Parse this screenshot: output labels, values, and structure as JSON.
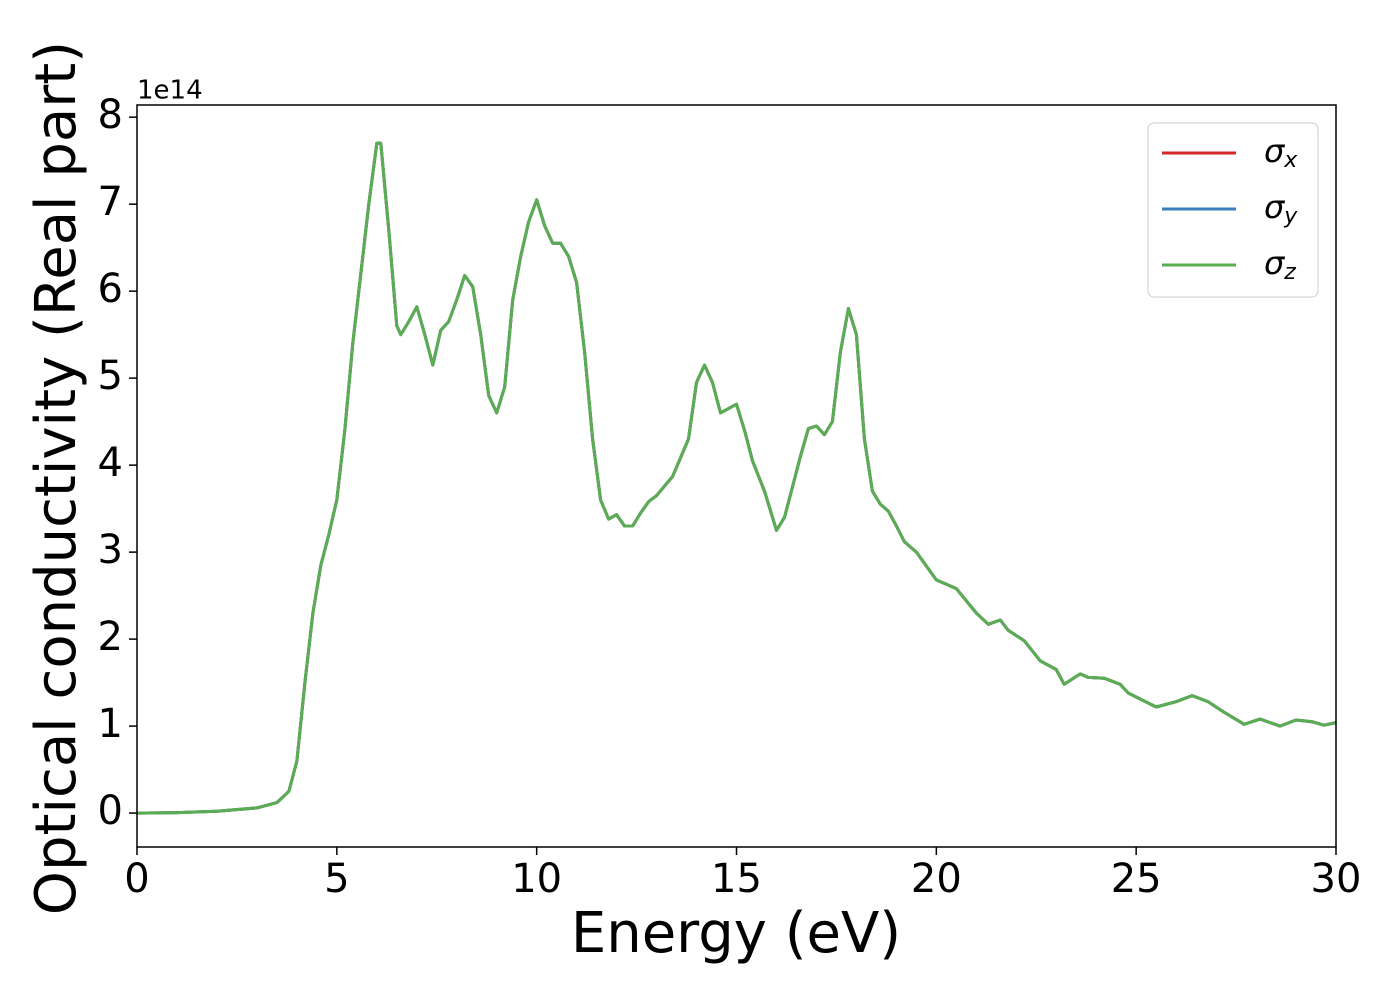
{
  "chart_data": {
    "type": "line",
    "x_label": "Energy (eV)",
    "y_label": "Optical conductivity (Real part)",
    "y_offset_label": "1e14",
    "x": [
      0,
      1,
      2,
      3,
      3.5,
      3.8,
      4.0,
      4.2,
      4.4,
      4.6,
      4.8,
      5.0,
      5.2,
      5.4,
      5.6,
      5.8,
      6.0,
      6.1,
      6.3,
      6.5,
      6.6,
      6.8,
      7.0,
      7.2,
      7.4,
      7.6,
      7.8,
      8.0,
      8.2,
      8.4,
      8.6,
      8.8,
      9.0,
      9.2,
      9.4,
      9.6,
      9.8,
      10.0,
      10.2,
      10.4,
      10.6,
      10.8,
      11.0,
      11.2,
      11.4,
      11.6,
      11.8,
      12.0,
      12.2,
      12.4,
      12.6,
      12.8,
      13.0,
      13.4,
      13.8,
      14.0,
      14.2,
      14.4,
      14.6,
      14.8,
      15.0,
      15.2,
      15.4,
      15.7,
      16.0,
      16.2,
      16.4,
      16.6,
      16.8,
      17.0,
      17.2,
      17.4,
      17.6,
      17.8,
      18.0,
      18.2,
      18.4,
      18.6,
      18.8,
      19.0,
      19.2,
      19.5,
      20.0,
      20.5,
      21.0,
      21.3,
      21.6,
      21.8,
      22.2,
      22.6,
      23.0,
      23.2,
      23.6,
      23.8,
      24.2,
      24.6,
      24.8,
      25.5,
      26.0,
      26.4,
      26.8,
      27.2,
      27.7,
      28.1,
      28.6,
      29.0,
      29.4,
      29.7,
      30.0
    ],
    "series": [
      {
        "name": "σx",
        "color": "#d62728",
        "values": [
          0,
          0.005,
          0.02,
          0.06,
          0.12,
          0.25,
          0.6,
          1.5,
          2.3,
          2.85,
          3.2,
          3.6,
          4.4,
          5.4,
          6.2,
          7.0,
          7.7,
          7.7,
          6.7,
          5.6,
          5.5,
          5.65,
          5.82,
          5.5,
          5.15,
          5.55,
          5.65,
          5.9,
          6.18,
          6.05,
          5.5,
          4.8,
          4.6,
          4.9,
          5.9,
          6.4,
          6.8,
          7.05,
          6.75,
          6.55,
          6.55,
          6.4,
          6.1,
          5.3,
          4.3,
          3.6,
          3.38,
          3.43,
          3.3,
          3.3,
          3.45,
          3.58,
          3.65,
          3.87,
          4.3,
          4.95,
          5.15,
          4.95,
          4.6,
          4.65,
          4.7,
          4.4,
          4.05,
          3.7,
          3.25,
          3.4,
          3.75,
          4.1,
          4.42,
          4.45,
          4.35,
          4.5,
          5.3,
          5.8,
          5.5,
          4.3,
          3.7,
          3.55,
          3.47,
          3.3,
          3.12,
          3.0,
          2.68,
          2.58,
          2.3,
          2.17,
          2.22,
          2.1,
          1.98,
          1.75,
          1.65,
          1.48,
          1.6,
          1.56,
          1.55,
          1.48,
          1.38,
          1.22,
          1.28,
          1.35,
          1.28,
          1.16,
          1.02,
          1.08,
          1.0,
          1.07,
          1.05,
          1.01,
          1.04
        ]
      },
      {
        "name": "σy",
        "color": "#3a7ebf",
        "values": [
          0,
          0.005,
          0.02,
          0.06,
          0.12,
          0.25,
          0.6,
          1.5,
          2.3,
          2.85,
          3.2,
          3.6,
          4.4,
          5.4,
          6.2,
          7.0,
          7.7,
          7.7,
          6.7,
          5.6,
          5.5,
          5.65,
          5.82,
          5.5,
          5.15,
          5.55,
          5.65,
          5.9,
          6.18,
          6.05,
          5.5,
          4.8,
          4.6,
          4.9,
          5.9,
          6.4,
          6.8,
          7.05,
          6.75,
          6.55,
          6.55,
          6.4,
          6.1,
          5.3,
          4.3,
          3.6,
          3.38,
          3.43,
          3.3,
          3.3,
          3.45,
          3.58,
          3.65,
          3.87,
          4.3,
          4.95,
          5.15,
          4.95,
          4.6,
          4.65,
          4.7,
          4.4,
          4.05,
          3.7,
          3.25,
          3.4,
          3.75,
          4.1,
          4.42,
          4.45,
          4.35,
          4.5,
          5.3,
          5.8,
          5.5,
          4.3,
          3.7,
          3.55,
          3.47,
          3.3,
          3.12,
          3.0,
          2.68,
          2.58,
          2.3,
          2.17,
          2.22,
          2.1,
          1.98,
          1.75,
          1.65,
          1.48,
          1.6,
          1.56,
          1.55,
          1.48,
          1.38,
          1.22,
          1.28,
          1.35,
          1.28,
          1.16,
          1.02,
          1.08,
          1.0,
          1.07,
          1.05,
          1.01,
          1.04
        ]
      },
      {
        "name": "σz",
        "color": "#5aad52",
        "values": [
          0,
          0.005,
          0.02,
          0.06,
          0.12,
          0.25,
          0.6,
          1.5,
          2.3,
          2.85,
          3.2,
          3.6,
          4.4,
          5.4,
          6.2,
          7.0,
          7.7,
          7.7,
          6.7,
          5.6,
          5.5,
          5.65,
          5.82,
          5.5,
          5.15,
          5.55,
          5.65,
          5.9,
          6.18,
          6.05,
          5.5,
          4.8,
          4.6,
          4.9,
          5.9,
          6.4,
          6.8,
          7.05,
          6.75,
          6.55,
          6.55,
          6.4,
          6.1,
          5.3,
          4.3,
          3.6,
          3.38,
          3.43,
          3.3,
          3.3,
          3.45,
          3.58,
          3.65,
          3.87,
          4.3,
          4.95,
          5.15,
          4.95,
          4.6,
          4.65,
          4.7,
          4.4,
          4.05,
          3.7,
          3.25,
          3.4,
          3.75,
          4.1,
          4.42,
          4.45,
          4.35,
          4.5,
          5.3,
          5.8,
          5.5,
          4.3,
          3.7,
          3.55,
          3.47,
          3.3,
          3.12,
          3.0,
          2.68,
          2.58,
          2.3,
          2.17,
          2.22,
          2.1,
          1.98,
          1.75,
          1.65,
          1.48,
          1.6,
          1.56,
          1.55,
          1.48,
          1.38,
          1.22,
          1.28,
          1.35,
          1.28,
          1.16,
          1.02,
          1.08,
          1.0,
          1.07,
          1.05,
          1.01,
          1.04
        ]
      }
    ],
    "xlim": [
      0,
      30
    ],
    "xticks": [
      0,
      5,
      10,
      15,
      20,
      25,
      30
    ],
    "ylim": [
      -0.39,
      8.14
    ],
    "yticks": [
      0,
      1,
      2,
      3,
      4,
      5,
      6,
      7,
      8
    ],
    "grid": false,
    "legend": "upper right"
  }
}
